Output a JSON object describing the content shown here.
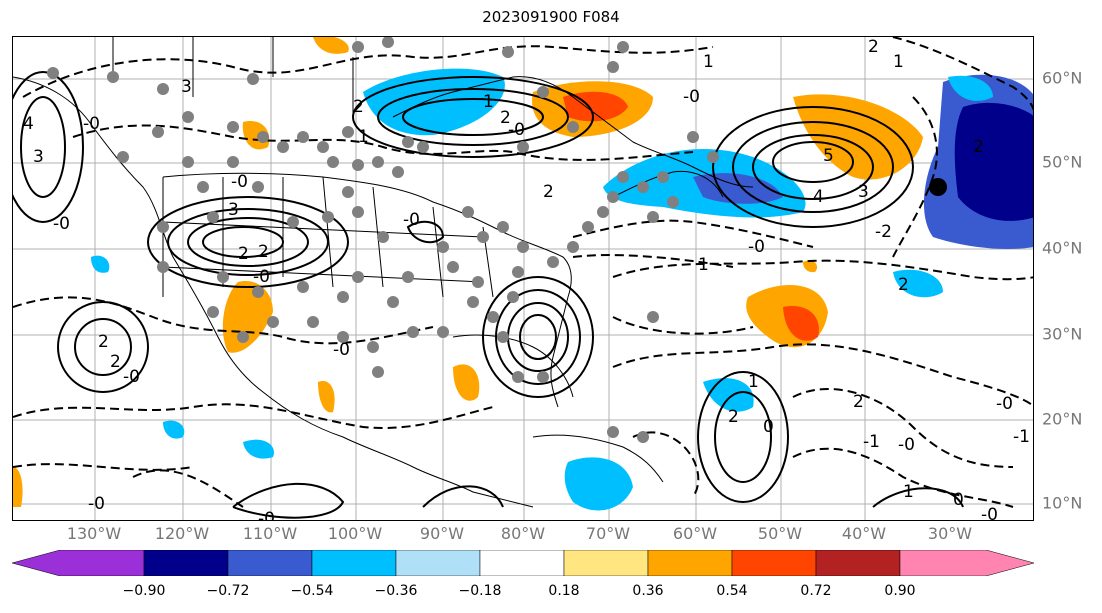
{
  "title": "2023091900 F084",
  "longitude_labels": [
    "130°W",
    "120°W",
    "110°W",
    "100°W",
    "90°W",
    "80°W",
    "70°W",
    "60°W",
    "50°W",
    "40°W",
    "30°W"
  ],
  "latitude_labels": [
    "60°N",
    "50°N",
    "40°N",
    "30°N",
    "20°N",
    "10°N"
  ],
  "colorbar": {
    "tick_labels": [
      "−0.90",
      "−0.72",
      "−0.54",
      "−0.36",
      "−0.18",
      "0.18",
      "0.36",
      "0.54",
      "0.72",
      "0.90"
    ],
    "colors": [
      "#9b30d9",
      "#00008b",
      "#3a5bd0",
      "#00bfff",
      "#b0e0f8",
      "#ffffff",
      "#ffe680",
      "#ffa500",
      "#ff4500",
      "#b22222",
      "#ff85b0"
    ]
  },
  "contour_labels": [
    "3",
    "4",
    "-0",
    "3",
    "2",
    "1",
    "-0",
    "2",
    "3",
    "-0",
    "2",
    "-0",
    "1",
    "2",
    "-0",
    "2",
    "5",
    "4",
    "3",
    "-2",
    "2",
    "-0",
    "1",
    "-0",
    "2",
    "1",
    "1",
    "-0",
    "-0",
    "2",
    "2",
    "-0",
    "-0",
    "-1",
    "2",
    "1",
    "0",
    "1",
    "0",
    "-0",
    "-1",
    "-0",
    "2",
    "2",
    "-0",
    "-0"
  ]
}
